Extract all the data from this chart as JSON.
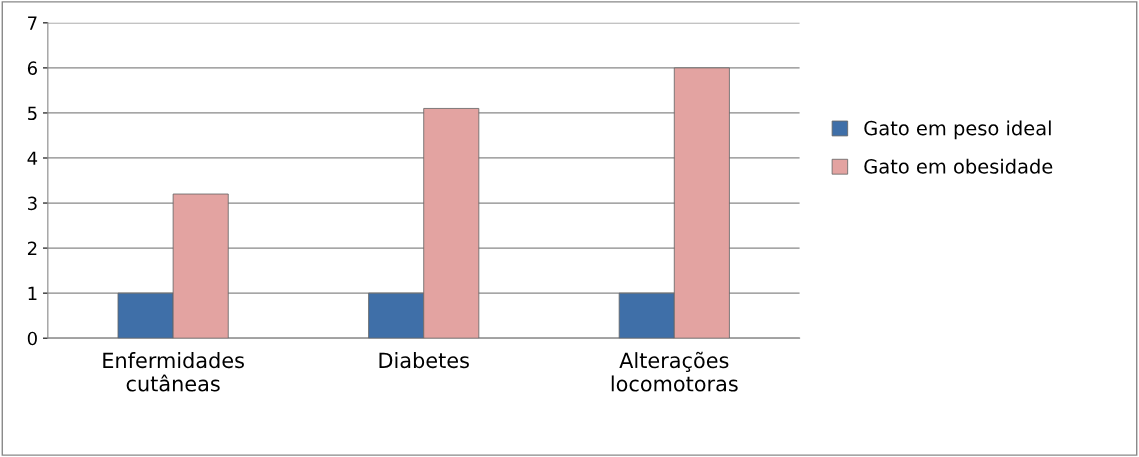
{
  "chart_data": {
    "type": "bar",
    "categories": [
      "Enfermidades\ncutâneas",
      "Diabetes",
      "Alterações\nlocomotoras"
    ],
    "series": [
      {
        "name": "Gato em peso ideal",
        "color": "#3f6fa8",
        "values": [
          1,
          1,
          1
        ]
      },
      {
        "name": "Gato em obesidade",
        "color": "#e3a3a1",
        "values": [
          3.2,
          5.1,
          6.0
        ]
      }
    ],
    "ylim": [
      0,
      7
    ],
    "yticks": [
      0,
      1,
      2,
      3,
      4,
      5,
      6,
      7
    ],
    "grid": "y",
    "legend": "right"
  }
}
